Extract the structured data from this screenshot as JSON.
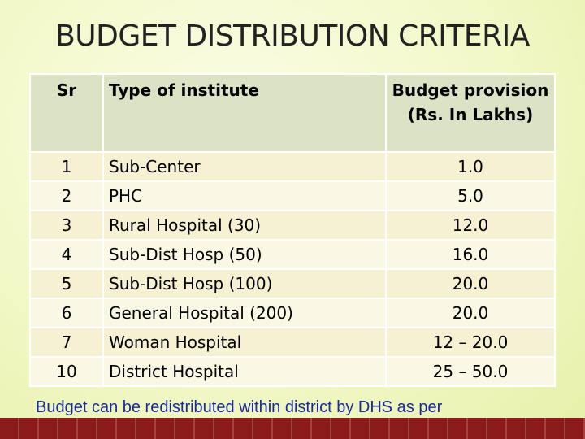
{
  "title": "BUDGET DISTRIBUTION CRITERIA",
  "table": {
    "headers": {
      "sr": "Sr",
      "type": "Type of institute",
      "budget": "Budget provision (Rs. In Lakhs)"
    },
    "rows": [
      {
        "sr": "1",
        "type": "Sub-Center",
        "budget": "1.0"
      },
      {
        "sr": "2",
        "type": "PHC",
        "budget": "5.0"
      },
      {
        "sr": "3",
        "type": "Rural Hospital (30)",
        "budget": "12.0"
      },
      {
        "sr": "4",
        "type": "Sub-Dist Hosp (50)",
        "budget": "16.0"
      },
      {
        "sr": "5",
        "type": "Sub-Dist Hosp (100)",
        "budget": "20.0"
      },
      {
        "sr": "6",
        "type": "General Hospital (200)",
        "budget": "20.0"
      },
      {
        "sr": "7",
        "type": "Woman Hospital",
        "budget": "12 – 20.0"
      },
      {
        "sr": "10",
        "type": "District Hospital",
        "budget": "25 – 50.0"
      }
    ]
  },
  "footer": "Budget can be redistributed within district by DHS as per",
  "colors": {
    "header_bg": "#dbe3c4",
    "row_bg": "#f5f1d2",
    "footer_text": "#1a2a9c",
    "band": "#8b1a1a"
  }
}
